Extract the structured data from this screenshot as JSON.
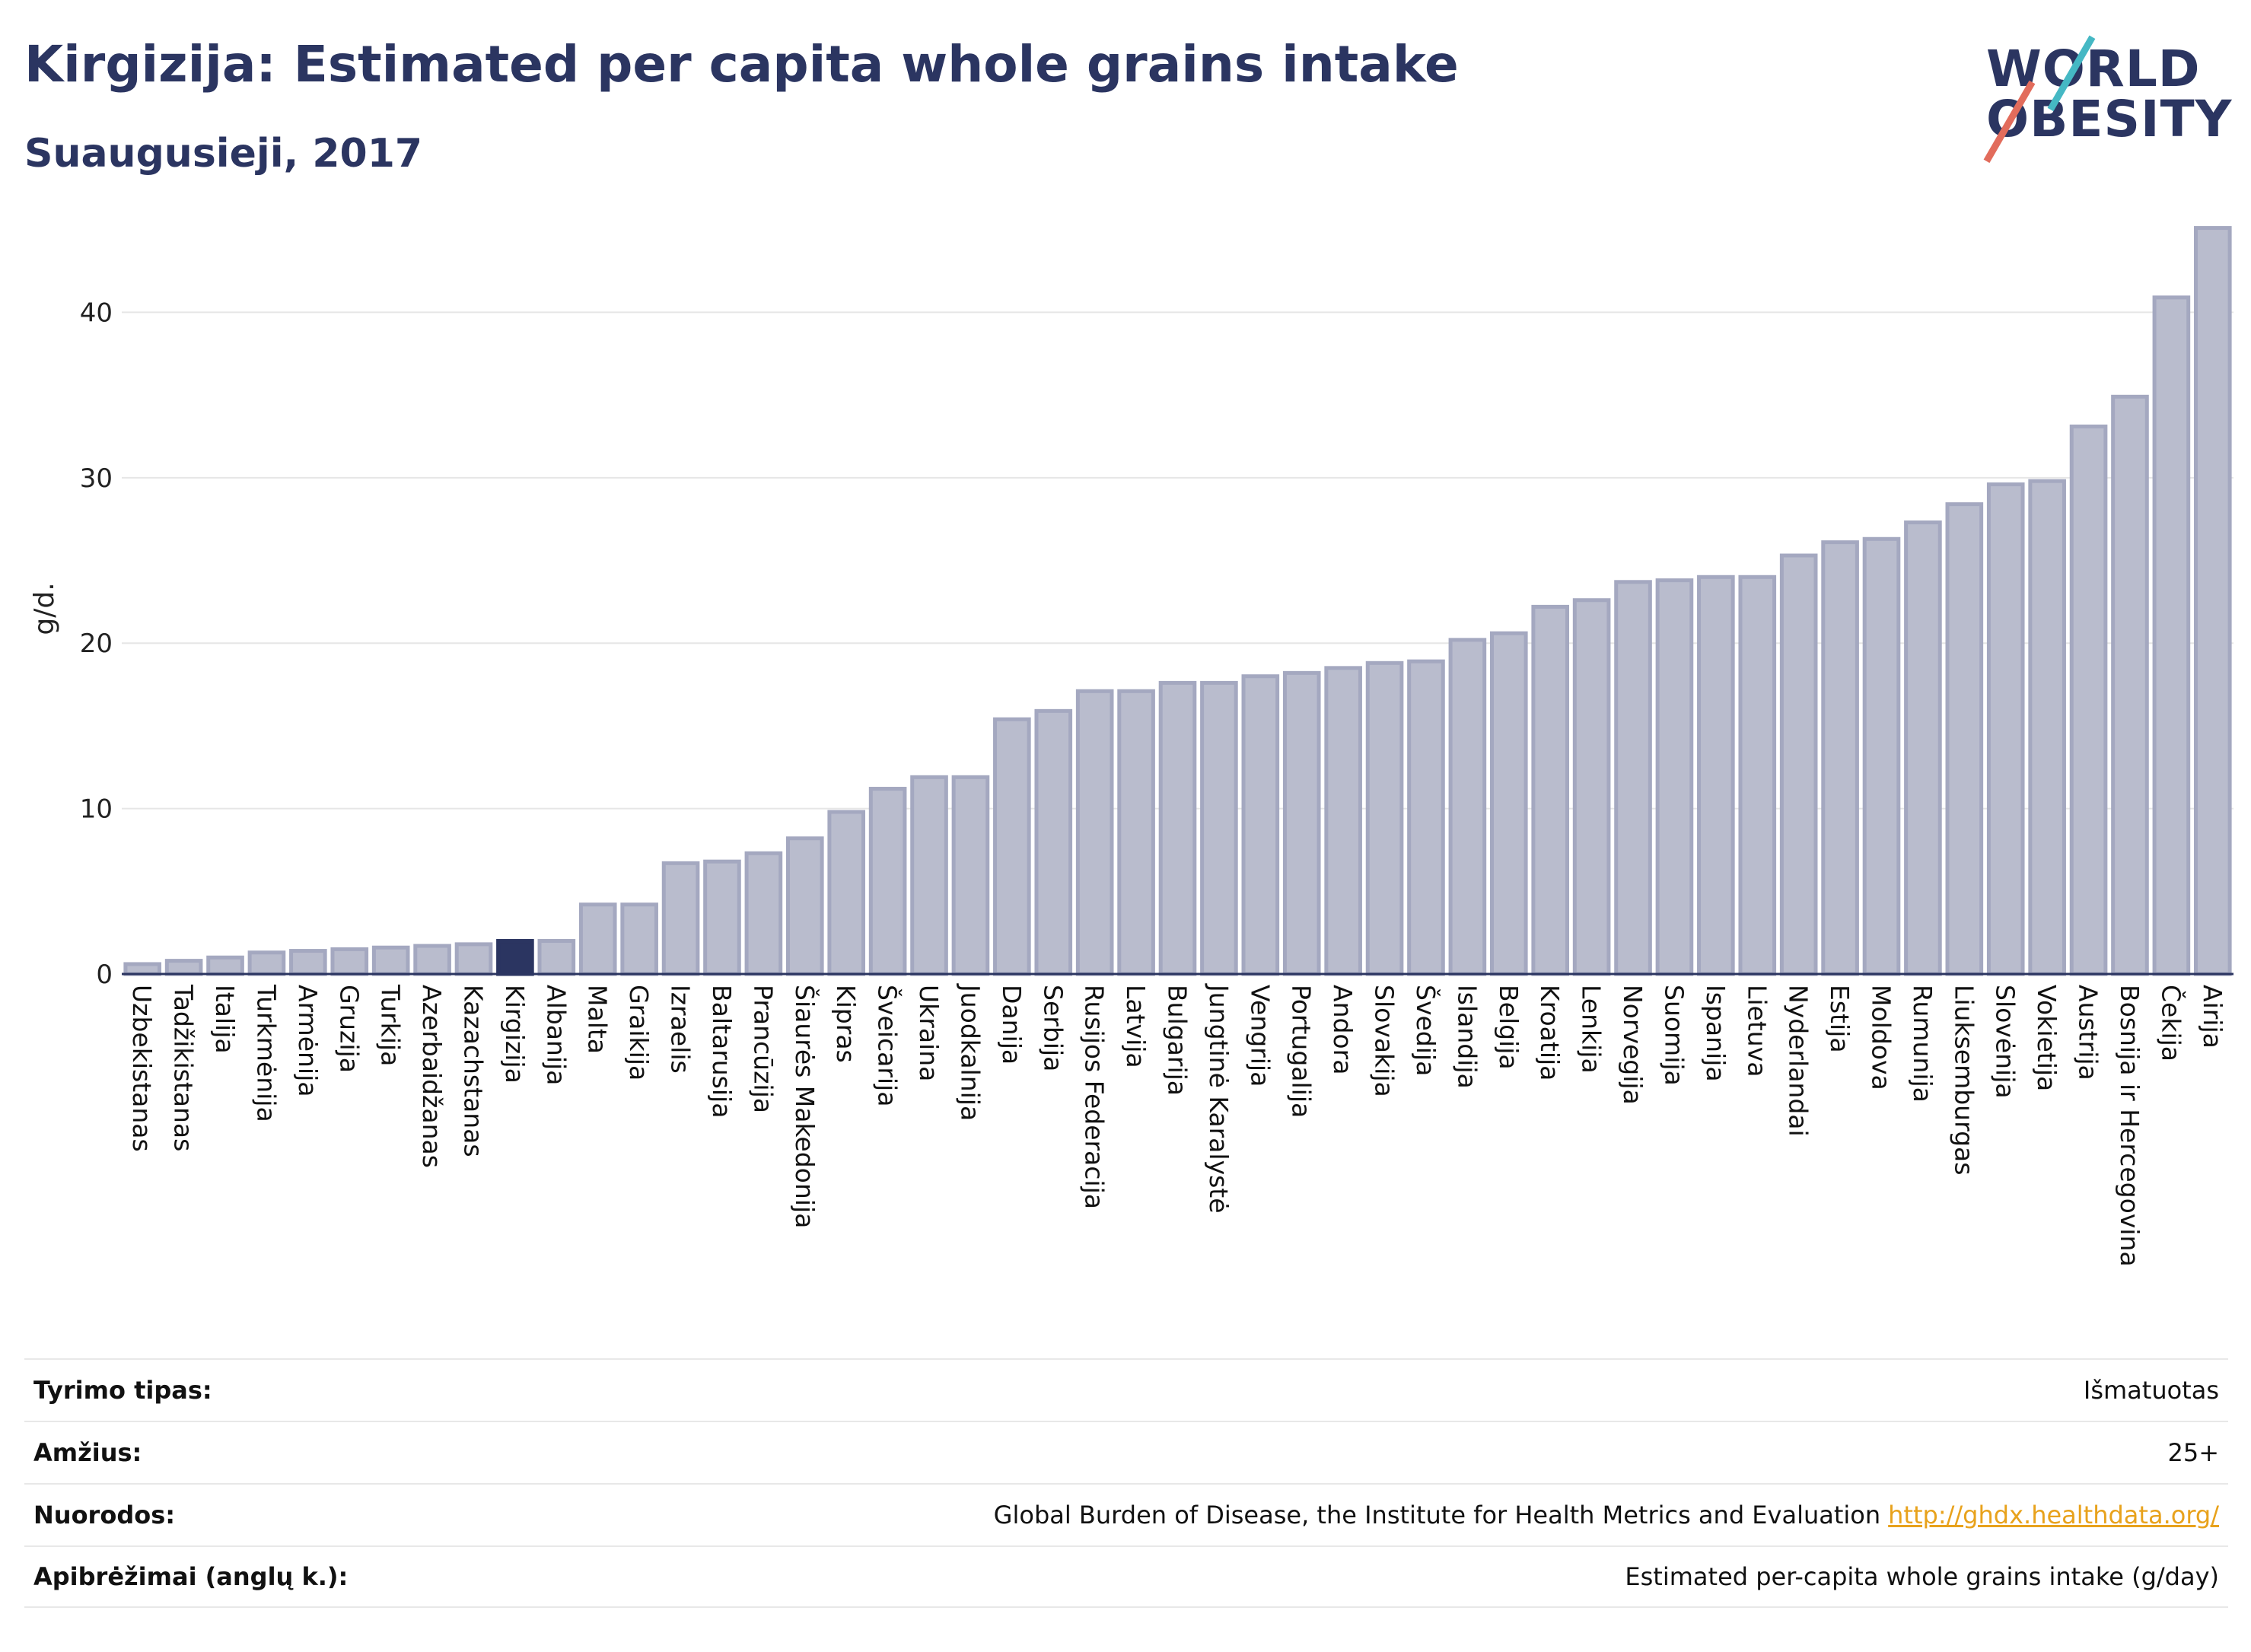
{
  "header": {
    "title": "Kirgizija: Estimated per capita whole grains intake",
    "subtitle": "Suaugusieji, 2017"
  },
  "logo": {
    "line1": "WORLD",
    "line2": "OBESITY"
  },
  "colors": {
    "bar": "#b9bccd",
    "bar_stroke": "#a4a8c0",
    "highlight": "#2b3561",
    "title": "#2b3561",
    "slash_teal": "#45b8c4",
    "slash_coral": "#e26c5c"
  },
  "chart_data": {
    "type": "bar",
    "ylabel": "g/d.",
    "ylim": [
      0,
      46
    ],
    "yticks": [
      0,
      10,
      20,
      30,
      40
    ],
    "grid": true,
    "highlight": "Kirgizija",
    "categories": [
      "Uzbekistanas",
      "Tadžikistanas",
      "Italija",
      "Turkmėnija",
      "Armėnija",
      "Gruzija",
      "Turkija",
      "Azerbaidžanas",
      "Kazachstanas",
      "Kirgizija",
      "Albanija",
      "Malta",
      "Graikija",
      "Izraelis",
      "Baltarusija",
      "Prancūzija",
      "Šiaurės Makedonija",
      "Kipras",
      "Šveicarija",
      "Ukraina",
      "Juodkalnija",
      "Danija",
      "Serbija",
      "Rusijos Federacija",
      "Latvija",
      "Bulgarija",
      "Jungtinė Karalystė",
      "Vengrija",
      "Portugalija",
      "Andora",
      "Slovakija",
      "Švedija",
      "Islandija",
      "Belgija",
      "Kroatija",
      "Lenkija",
      "Norvegija",
      "Suomija",
      "Ispanija",
      "Lietuva",
      "Nyderlandai",
      "Estija",
      "Moldova",
      "Rumunija",
      "Liuksemburgas",
      "Slovėnija",
      "Vokietija",
      "Austrija",
      "Bosnija ir Hercegovina",
      "Čekija",
      "Airija"
    ],
    "values": [
      0.6,
      0.8,
      1.0,
      1.3,
      1.4,
      1.5,
      1.6,
      1.7,
      1.8,
      2.0,
      2.0,
      4.2,
      4.2,
      6.7,
      6.8,
      7.3,
      8.2,
      9.8,
      11.2,
      11.9,
      11.9,
      15.4,
      15.9,
      17.1,
      17.1,
      17.6,
      17.6,
      18.0,
      18.2,
      18.5,
      18.8,
      18.9,
      20.2,
      20.6,
      22.2,
      22.6,
      23.7,
      23.8,
      24.0,
      24.0,
      25.3,
      26.1,
      26.3,
      27.3,
      28.4,
      29.6,
      29.8,
      33.1,
      34.9,
      40.9,
      45.1
    ]
  },
  "info": [
    {
      "label": "Tyrimo tipas:",
      "value": "Išmatuotas"
    },
    {
      "label": "Amžius:",
      "value": "25+"
    },
    {
      "label": "Nuorodos:",
      "value": "Global Burden of Disease, the Institute for Health Metrics and Evaluation",
      "link": "http://ghdx.healthdata.org/"
    },
    {
      "label": "Apibrėžimai (anglų k.):",
      "value": "Estimated per-capita whole grains intake (g/day)"
    }
  ]
}
